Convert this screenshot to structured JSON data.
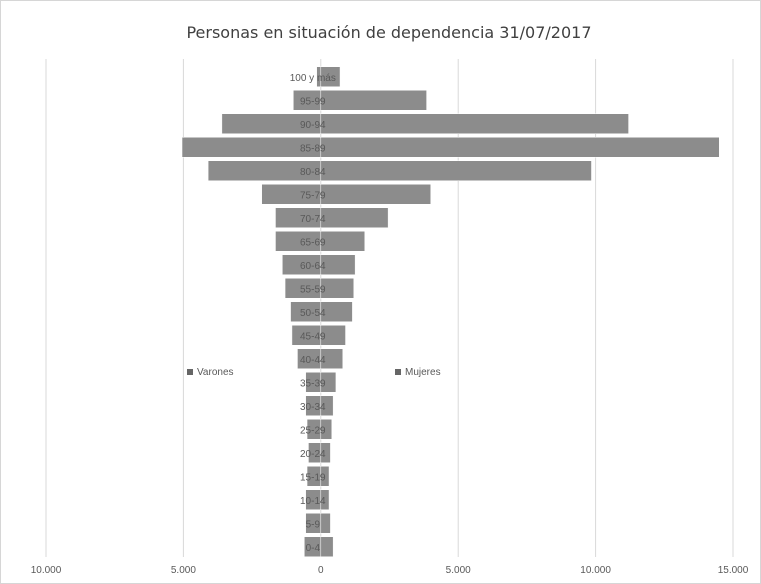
{
  "chart_data": {
    "type": "bar",
    "orientation": "horizontal",
    "title": "Personas en situación de dependencia 31/07/2017",
    "categories": [
      "0-4",
      "5-9",
      "10-14",
      "15-19",
      "20-24",
      "25-29",
      "30-34",
      "35-39",
      "40-44",
      "45-49",
      "50-54",
      "55-59",
      "60-64",
      "65-69",
      "70-74",
      "75-79",
      "80-84",
      "85-89",
      "90-94",
      "95-99",
      "100 y más"
    ],
    "series": [
      {
        "name": "Varones",
        "values": [
          600,
          550,
          550,
          500,
          450,
          500,
          550,
          550,
          850,
          1050,
          1100,
          1300,
          1400,
          1650,
          1650,
          2150,
          4100,
          5050,
          3600,
          1000,
          150
        ]
      },
      {
        "name": "Mujeres",
        "values": [
          450,
          350,
          300,
          300,
          350,
          400,
          450,
          550,
          800,
          900,
          1150,
          1200,
          1250,
          1600,
          2450,
          4000,
          9850,
          14500,
          11200,
          3850,
          700
        ]
      }
    ],
    "xlim": [
      -10000,
      15000
    ],
    "xticks": [
      -10000,
      -5000,
      0,
      5000,
      10000,
      15000
    ],
    "xtick_labels": [
      "10.000",
      "5.000",
      "0",
      "5.000",
      "10.000",
      "15.000"
    ],
    "grid": "vertical",
    "legend": [
      "Varones",
      "Mujeres"
    ],
    "legend_position": "middle, beside the bars",
    "bar_color": "#8c8c8c",
    "grid_color": "#d9d9d9"
  }
}
